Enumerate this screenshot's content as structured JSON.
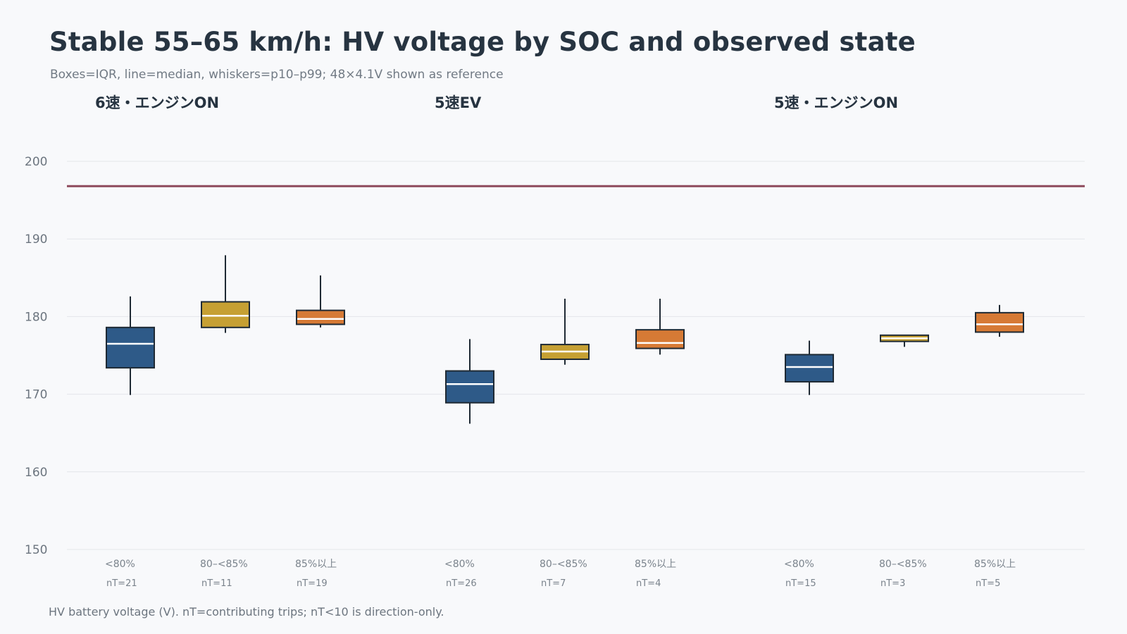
{
  "header": {
    "title": "Stable 55–65 km/h: HV voltage by SOC and observed state",
    "subtitle": "Boxes=IQR, line=median, whiskers=p10–p99; 48×4.1V shown as reference"
  },
  "footnote": "HV battery voltage (V). nT=contributing trips; nT<10 is direction-only.",
  "colors": {
    "<80%": "#2e5a88",
    "80–<85%": "#c6a033",
    "85%以上": "#d67a35",
    "reference": "#8e4a5c"
  },
  "chart_data": {
    "type": "box",
    "ylim": [
      150,
      200
    ],
    "yticks": [
      "150",
      "160",
      "170",
      "180",
      "190",
      "200"
    ],
    "grid": true,
    "reference_line": {
      "value": 196.8
    },
    "panels": [
      {
        "title": "6速・エンジンON",
        "boxes": [
          {
            "category": "<80%",
            "n_label": "nT=21",
            "p10": 169.9,
            "q1": 173.4,
            "median": 176.5,
            "q3": 178.6,
            "p99": 182.6
          },
          {
            "category": "80–<85%",
            "n_label": "nT=11",
            "p10": 177.9,
            "q1": 178.6,
            "median": 180.1,
            "q3": 181.9,
            "p99": 187.9
          },
          {
            "category": "85%以上",
            "n_label": "nT=19",
            "p10": 178.6,
            "q1": 179.0,
            "median": 179.7,
            "q3": 180.8,
            "p99": 185.3
          }
        ]
      },
      {
        "title": "5速EV",
        "boxes": [
          {
            "category": "<80%",
            "n_label": "nT=26",
            "p10": 166.2,
            "q1": 168.9,
            "median": 171.3,
            "q3": 173.0,
            "p99": 177.1
          },
          {
            "category": "80–<85%",
            "n_label": "nT=7",
            "p10": 173.8,
            "q1": 174.5,
            "median": 175.5,
            "q3": 176.4,
            "p99": 182.3
          },
          {
            "category": "85%以上",
            "n_label": "nT=4",
            "p10": 175.1,
            "q1": 175.9,
            "median": 176.6,
            "q3": 178.3,
            "p99": 182.3
          }
        ]
      },
      {
        "title": "5速・エンジンON",
        "boxes": [
          {
            "category": "<80%",
            "n_label": "nT=15",
            "p10": 169.9,
            "q1": 171.6,
            "median": 173.5,
            "q3": 175.1,
            "p99": 176.9
          },
          {
            "category": "80–<85%",
            "n_label": "nT=3",
            "p10": 176.1,
            "q1": 176.8,
            "median": 177.2,
            "q3": 177.6,
            "p99": 177.6
          },
          {
            "category": "85%以上",
            "n_label": "nT=5",
            "p10": 177.4,
            "q1": 178.0,
            "median": 179.0,
            "q3": 180.5,
            "p99": 181.5
          }
        ]
      }
    ]
  }
}
